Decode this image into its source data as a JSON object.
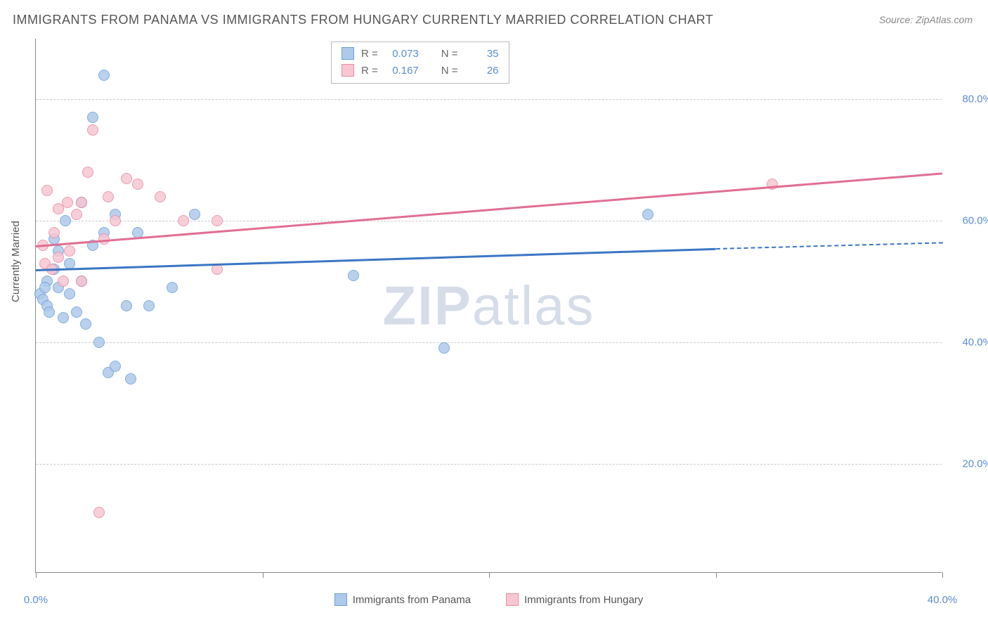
{
  "title": "IMMIGRANTS FROM PANAMA VS IMMIGRANTS FROM HUNGARY CURRENTLY MARRIED CORRELATION CHART",
  "source_prefix": "Source: ",
  "source_name": "ZipAtlas.com",
  "watermark_bold": "ZIP",
  "watermark_rest": "atlas",
  "ylabel": "Currently Married",
  "chart": {
    "type": "scatter",
    "background_color": "#ffffff",
    "grid_color": "#cccccc",
    "axis_color": "#888888",
    "xlim": [
      0,
      40
    ],
    "ylim": [
      2,
      90
    ],
    "xticks": [
      0,
      10,
      20,
      30,
      40
    ],
    "xtick_labels": [
      "0.0%",
      "",
      "",
      "",
      "40.0%"
    ],
    "yticks": [
      20,
      40,
      60,
      80
    ],
    "ytick_labels": [
      "20.0%",
      "40.0%",
      "60.0%",
      "80.0%"
    ],
    "marker_radius": 8,
    "marker_stroke_width": 1.5,
    "series": [
      {
        "name": "Immigrants from Panama",
        "legend_label": "Immigrants from Panama",
        "color_fill": "#aec9ec",
        "color_stroke": "#6f9fd8",
        "stats": {
          "R_label": "R =",
          "R": "0.073",
          "N_label": "N =",
          "N": "35"
        },
        "points": [
          [
            0.2,
            48
          ],
          [
            0.3,
            47
          ],
          [
            0.5,
            46
          ],
          [
            0.5,
            50
          ],
          [
            0.6,
            45
          ],
          [
            0.8,
            52
          ],
          [
            0.8,
            57
          ],
          [
            1.0,
            49
          ],
          [
            1.0,
            55
          ],
          [
            1.2,
            44
          ],
          [
            1.3,
            60
          ],
          [
            1.5,
            53
          ],
          [
            1.5,
            48
          ],
          [
            1.8,
            45
          ],
          [
            2.0,
            50
          ],
          [
            2.0,
            63
          ],
          [
            2.2,
            43
          ],
          [
            2.5,
            77
          ],
          [
            2.5,
            56
          ],
          [
            2.8,
            40
          ],
          [
            3.0,
            84
          ],
          [
            3.0,
            58
          ],
          [
            3.2,
            35
          ],
          [
            3.5,
            61
          ],
          [
            3.5,
            36
          ],
          [
            4.0,
            46
          ],
          [
            4.2,
            34
          ],
          [
            4.5,
            58
          ],
          [
            5.0,
            46
          ],
          [
            6.0,
            49
          ],
          [
            7.0,
            61
          ],
          [
            14.0,
            51
          ],
          [
            18.0,
            39
          ],
          [
            27.0,
            61
          ],
          [
            0.4,
            49
          ]
        ],
        "trend": {
          "x0": 0,
          "y0": 52,
          "x1": 30,
          "y1": 55.5,
          "dash_to_x": 40,
          "dash_to_y": 56.5,
          "color": "#3a76c4"
        }
      },
      {
        "name": "Immigrants from Hungary",
        "legend_label": "Immigrants from Hungary",
        "color_fill": "#f7c6d2",
        "color_stroke": "#e88ba5",
        "stats": {
          "R_label": "R =",
          "R": "0.167",
          "N_label": "N =",
          "N": "26"
        },
        "points": [
          [
            0.3,
            56
          ],
          [
            0.4,
            53
          ],
          [
            0.5,
            65
          ],
          [
            0.7,
            52
          ],
          [
            0.8,
            58
          ],
          [
            1.0,
            54
          ],
          [
            1.0,
            62
          ],
          [
            1.2,
            50
          ],
          [
            1.4,
            63
          ],
          [
            1.5,
            55
          ],
          [
            1.8,
            61
          ],
          [
            2.0,
            63
          ],
          [
            2.0,
            50
          ],
          [
            2.3,
            68
          ],
          [
            2.5,
            75
          ],
          [
            2.8,
            12
          ],
          [
            3.0,
            57
          ],
          [
            3.2,
            64
          ],
          [
            3.5,
            60
          ],
          [
            4.0,
            67
          ],
          [
            4.5,
            66
          ],
          [
            5.5,
            64
          ],
          [
            6.5,
            60
          ],
          [
            8.0,
            52
          ],
          [
            8.0,
            60
          ],
          [
            32.5,
            66
          ]
        ],
        "trend": {
          "x0": 0,
          "y0": 56,
          "x1": 40,
          "y1": 68,
          "color": "#e06f92"
        }
      }
    ]
  }
}
